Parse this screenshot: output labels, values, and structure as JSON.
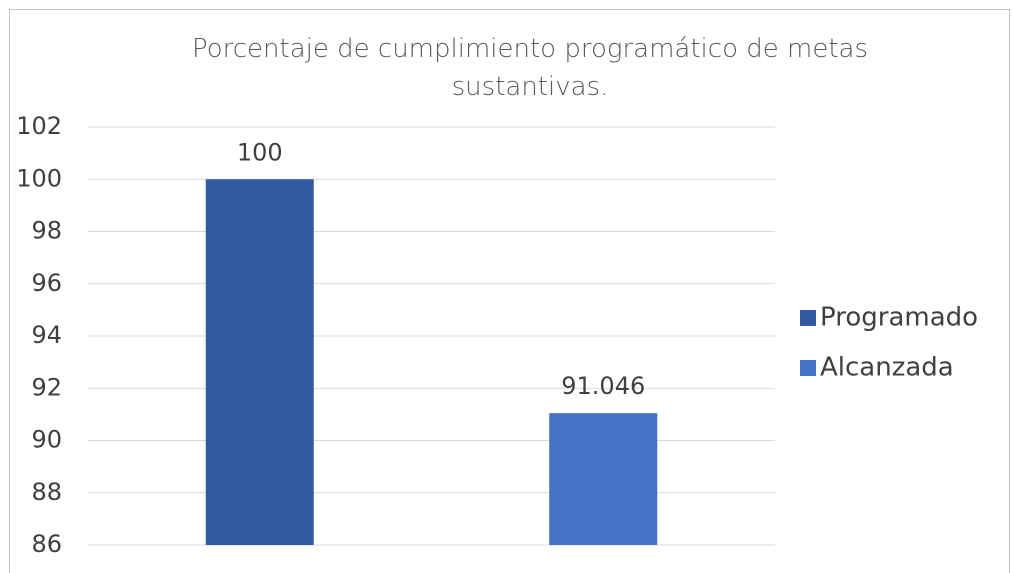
{
  "chart_data": {
    "type": "bar",
    "title": "Porcentaje de cumplimiento programático de metas sustantivas.",
    "categories": [
      null,
      null
    ],
    "series": [
      {
        "name": "Programado",
        "color": "#335aa1",
        "values": [
          100,
          null
        ]
      },
      {
        "name": "Alcanzada",
        "color": "#4472c4",
        "values": [
          null,
          91.046
        ]
      }
    ],
    "ylim": [
      86,
      102
    ],
    "yticks": [
      86,
      88,
      90,
      92,
      94,
      96,
      98,
      100,
      102
    ],
    "grid": true,
    "legend": "right"
  }
}
